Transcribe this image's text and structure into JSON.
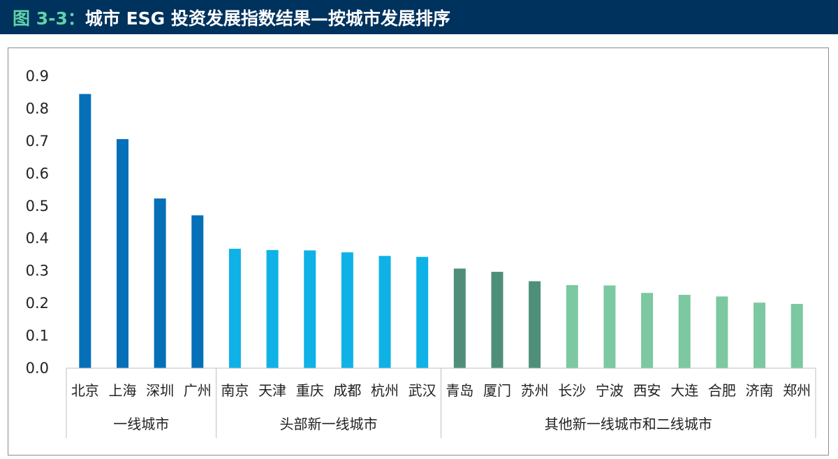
{
  "header": {
    "figure_label": "图 3-3",
    "separator": "：",
    "title": "城市 ESG 投资发展指数结果—按城市发展排序"
  },
  "colors": {
    "header_bg": "#00325e",
    "header_accent": "#5fd3a8",
    "tier1": "#0570b8",
    "leading_new_tier1": "#0eb2e6",
    "other_new_tier1_dark": "#4f8f7a",
    "other_new_tier1_light": "#7cc8a0"
  },
  "chart_data": {
    "type": "bar",
    "title": "",
    "xlabel": "",
    "ylabel": "",
    "ylim": [
      0,
      0.9
    ],
    "yticks": [
      "0.0",
      "0.1",
      "0.2",
      "0.3",
      "0.4",
      "0.5",
      "0.6",
      "0.7",
      "0.8",
      "0.9"
    ],
    "grid": false,
    "legend": "none",
    "categories": [
      "北京",
      "上海",
      "深圳",
      "广州",
      "南京",
      "天津",
      "重庆",
      "成都",
      "杭州",
      "武汉",
      "青岛",
      "厦门",
      "苏州",
      "长沙",
      "宁波",
      "西安",
      "大连",
      "合肥",
      "济南",
      "郑州"
    ],
    "values": [
      0.845,
      0.706,
      0.523,
      0.471,
      0.368,
      0.364,
      0.363,
      0.357,
      0.346,
      0.343,
      0.307,
      0.297,
      0.268,
      0.256,
      0.255,
      0.232,
      0.226,
      0.221,
      0.202,
      0.198
    ],
    "bar_colors": [
      "#0570b8",
      "#0570b8",
      "#0570b8",
      "#0570b8",
      "#0eb2e6",
      "#0eb2e6",
      "#0eb2e6",
      "#0eb2e6",
      "#0eb2e6",
      "#0eb2e6",
      "#4f8f7a",
      "#4f8f7a",
      "#4f8f7a",
      "#7cc8a0",
      "#7cc8a0",
      "#7cc8a0",
      "#7cc8a0",
      "#7cc8a0",
      "#7cc8a0",
      "#7cc8a0"
    ],
    "groups": [
      {
        "label": "一线城市",
        "start": 0,
        "end": 3
      },
      {
        "label": "头部新一线城市",
        "start": 4,
        "end": 9
      },
      {
        "label": "其他新一线城市和二线城市",
        "start": 10,
        "end": 19
      }
    ]
  }
}
